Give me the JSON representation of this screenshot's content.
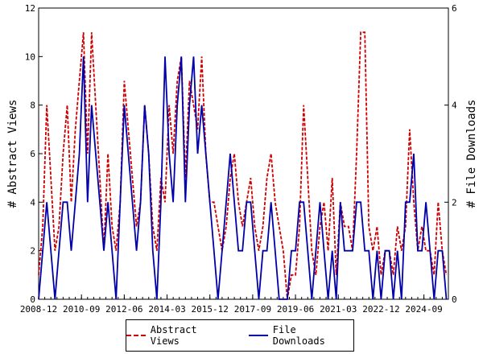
{
  "chart_data": {
    "type": "line",
    "title": "",
    "ylabel_left": "# Abstract Views",
    "ylabel_right": "# File Downloads",
    "ylim_left": [
      0,
      12
    ],
    "ylim_right": [
      0,
      6
    ],
    "yticks_left": [
      "0",
      "2",
      "4",
      "6",
      "8",
      "10",
      "12"
    ],
    "yticks_right": [
      "0",
      "2",
      "4",
      "6"
    ],
    "xlim": [
      "2008-12",
      "2025-09"
    ],
    "x_tick_labels": [
      "2008-12",
      "2010-09",
      "2012-06",
      "2014-03",
      "2015-12",
      "2017-09",
      "2019-06",
      "2021-03",
      "2022-12",
      "2024-09"
    ],
    "legend_position": "bottom-center",
    "x": [
      "2008-12",
      "2009-02",
      "2009-04",
      "2009-06",
      "2009-08",
      "2009-10",
      "2009-12",
      "2010-02",
      "2010-04",
      "2010-06",
      "2010-08",
      "2010-10",
      "2010-12",
      "2011-02",
      "2011-04",
      "2011-06",
      "2011-08",
      "2011-10",
      "2011-12",
      "2012-02",
      "2012-04",
      "2012-06",
      "2012-08",
      "2012-10",
      "2012-12",
      "2013-02",
      "2013-04",
      "2013-06",
      "2013-08",
      "2013-10",
      "2013-12",
      "2014-02",
      "2014-04",
      "2014-06",
      "2014-08",
      "2014-10",
      "2014-12",
      "2015-02",
      "2015-04",
      "2015-06",
      "2015-08",
      "2015-10",
      "2015-12",
      "2016-02",
      "2016-04",
      "2016-06",
      "2016-08",
      "2016-10",
      "2016-12",
      "2017-02",
      "2017-04",
      "2017-06",
      "2017-08",
      "2017-10",
      "2017-12",
      "2018-02",
      "2018-04",
      "2018-06",
      "2018-08",
      "2018-10",
      "2018-12",
      "2019-02",
      "2019-04",
      "2019-06",
      "2019-08",
      "2019-10",
      "2019-12",
      "2020-02",
      "2020-04",
      "2020-06",
      "2020-08",
      "2020-10",
      "2020-12",
      "2021-02",
      "2021-04",
      "2021-06",
      "2021-08",
      "2021-10",
      "2021-12",
      "2022-02",
      "2022-04",
      "2022-06",
      "2022-08",
      "2022-10",
      "2022-12",
      "2023-02",
      "2023-04",
      "2023-06",
      "2023-08",
      "2023-10",
      "2023-12",
      "2024-02",
      "2024-04",
      "2024-06",
      "2024-08",
      "2024-10",
      "2024-12",
      "2025-02",
      "2025-04",
      "2025-06",
      "2025-08"
    ],
    "series": [
      {
        "name": "Abstract Views",
        "axis": "left",
        "color": "#cc0000",
        "style": "dashed",
        "values": [
          1,
          3,
          8,
          5,
          2,
          3,
          6,
          8,
          4,
          7,
          9,
          11,
          6,
          11,
          8,
          5,
          2,
          6,
          3,
          2,
          4,
          9,
          7,
          5,
          3,
          4,
          8,
          6,
          3,
          2,
          5,
          4,
          8,
          6,
          9,
          10,
          5,
          9,
          8,
          7,
          10,
          6,
          4,
          4,
          3,
          2,
          3,
          5,
          6,
          4,
          3,
          4,
          5,
          3,
          2,
          3,
          5,
          6,
          4,
          3,
          2,
          0,
          1,
          1,
          3,
          8,
          5,
          2,
          1,
          3,
          4,
          2,
          5,
          1,
          4,
          3,
          3,
          2,
          6,
          11,
          11,
          3,
          2,
          3,
          1,
          2,
          2,
          1,
          3,
          2,
          3,
          7,
          4,
          2,
          3,
          2,
          2,
          1,
          4,
          2,
          1
        ]
      },
      {
        "name": "File Downloads",
        "axis": "right",
        "color": "#0000aa",
        "style": "solid",
        "values": [
          0,
          1,
          2,
          1,
          0,
          1,
          2,
          2,
          1,
          2,
          3,
          5,
          2,
          4,
          3,
          2,
          1,
          2,
          1,
          0,
          2,
          4,
          3,
          2,
          1,
          2,
          4,
          3,
          1,
          0,
          2,
          5,
          3,
          2,
          4,
          5,
          2,
          4,
          5,
          3,
          4,
          3,
          2,
          1,
          0,
          1,
          2,
          3,
          2,
          1,
          1,
          2,
          2,
          1,
          0,
          1,
          1,
          2,
          1,
          0,
          0,
          0,
          1,
          1,
          2,
          2,
          1,
          0,
          1,
          2,
          1,
          0,
          1,
          0,
          2,
          1,
          1,
          1,
          2,
          2,
          1,
          1,
          0,
          1,
          0,
          1,
          1,
          0,
          1,
          0,
          2,
          2,
          3,
          1,
          1,
          2,
          1,
          0,
          1,
          1,
          0
        ]
      }
    ]
  }
}
